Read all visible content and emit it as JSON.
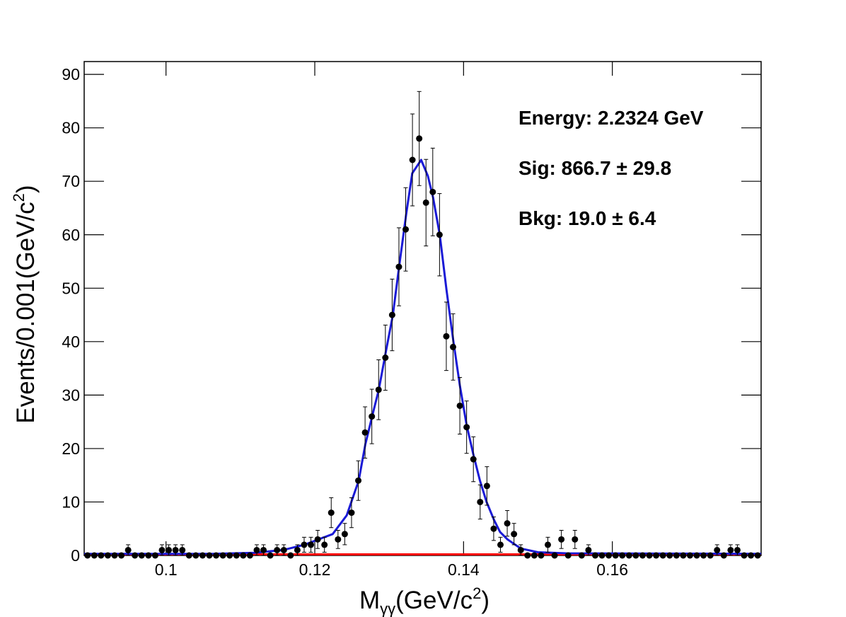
{
  "chart_data": {
    "type": "errorbar",
    "x_label": {
      "main": "M",
      "sub": "γγ",
      "rest": "(GeV/c",
      "sup": "2",
      "end": ")"
    },
    "y_label": {
      "main": "Events/0.001(GeV/c",
      "sup": "2",
      "end": ")"
    },
    "annotations": [
      "Energy: 2.2324 GeV",
      "Sig: 866.7  ± 29.8",
      "Bkg: 19.0  ± 6.4"
    ],
    "xlim": [
      0.089,
      0.18
    ],
    "ylim": [
      0,
      92.4
    ],
    "xticks": [
      0.1,
      0.12,
      0.14,
      0.16
    ],
    "yticks": [
      0,
      10,
      20,
      30,
      40,
      50,
      60,
      70,
      80,
      90
    ],
    "series": [
      {
        "type": "errorbar",
        "color": "#000000",
        "x": [
          0.08945,
          0.09036,
          0.09127,
          0.09218,
          0.09309,
          0.094,
          0.09491,
          0.09582,
          0.09673,
          0.09764,
          0.09855,
          0.09946,
          0.10037,
          0.10128,
          0.10219,
          0.1031,
          0.10401,
          0.10492,
          0.10583,
          0.10674,
          0.10765,
          0.10856,
          0.10947,
          0.11038,
          0.11129,
          0.1122,
          0.11311,
          0.11402,
          0.11493,
          0.11584,
          0.11675,
          0.11766,
          0.11857,
          0.11948,
          0.12039,
          0.1213,
          0.12221,
          0.12312,
          0.12403,
          0.12494,
          0.12585,
          0.12676,
          0.12767,
          0.12858,
          0.12949,
          0.1304,
          0.13131,
          0.13222,
          0.13313,
          0.13404,
          0.13495,
          0.13586,
          0.13677,
          0.13768,
          0.13859,
          0.1395,
          0.14041,
          0.14132,
          0.14223,
          0.14314,
          0.14405,
          0.14496,
          0.14587,
          0.14678,
          0.14769,
          0.1486,
          0.14951,
          0.15042,
          0.15133,
          0.15224,
          0.15315,
          0.15406,
          0.15497,
          0.15588,
          0.15679,
          0.1577,
          0.15861,
          0.15952,
          0.16043,
          0.16134,
          0.16225,
          0.16316,
          0.16407,
          0.16498,
          0.16589,
          0.1668,
          0.16771,
          0.16862,
          0.16953,
          0.17044,
          0.17135,
          0.17226,
          0.17317,
          0.17408,
          0.17499,
          0.1759,
          0.17681,
          0.17772,
          0.17863,
          0.17954
        ],
        "values": [
          0,
          0,
          0,
          0,
          0,
          0,
          1,
          0,
          0,
          0,
          0,
          1,
          1,
          1,
          1,
          0,
          0,
          0,
          0,
          0,
          0,
          0,
          0,
          0,
          0,
          1,
          1,
          0,
          1,
          1,
          0,
          1,
          2,
          2,
          3,
          2,
          8,
          3,
          4,
          8,
          14,
          23,
          26,
          31,
          37,
          45,
          54,
          61,
          74,
          78,
          66,
          68,
          60,
          41,
          39,
          28,
          24,
          18,
          10,
          13,
          5,
          2,
          6,
          4,
          1,
          0,
          0,
          0,
          2,
          0,
          3,
          0,
          3,
          0,
          1,
          0,
          0,
          0,
          0,
          0,
          0,
          0,
          0,
          0,
          0,
          0,
          0,
          0,
          0,
          0,
          0,
          0,
          0,
          1,
          0,
          1,
          1,
          0,
          0,
          0
        ],
        "errors": [
          0,
          0,
          0,
          0,
          0,
          0,
          1,
          0,
          0,
          0,
          0,
          1,
          1,
          1,
          1,
          0,
          0,
          0,
          0,
          0,
          0,
          0,
          0,
          0,
          0,
          1,
          1,
          0,
          1,
          1,
          0,
          1,
          1.4,
          1.4,
          1.7,
          1.4,
          2.8,
          1.7,
          2,
          2.8,
          3.7,
          4.8,
          5.1,
          5.6,
          6.1,
          6.7,
          7.3,
          7.8,
          8.6,
          8.8,
          8.1,
          8.2,
          7.7,
          6.4,
          6.2,
          5.3,
          4.9,
          4.2,
          3.2,
          3.6,
          2.2,
          1.4,
          2.4,
          2,
          1,
          0,
          0,
          0,
          1.4,
          0,
          1.7,
          0,
          1.7,
          0,
          1,
          0,
          0,
          0,
          0,
          0,
          0,
          0,
          0,
          0,
          0,
          0,
          0,
          0,
          0,
          0,
          0,
          0,
          0,
          1,
          0,
          1,
          1,
          0,
          0,
          0
        ]
      },
      {
        "type": "line",
        "color": "#1a1ad6",
        "x": [
          0.089,
          0.1062,
          0.1119,
          0.1157,
          0.1186,
          0.1205,
          0.1224,
          0.1243,
          0.1259,
          0.1268,
          0.1278,
          0.1286,
          0.1295,
          0.1305,
          0.1313,
          0.1323,
          0.1331,
          0.1343,
          0.1352,
          0.1359,
          0.1368,
          0.1377,
          0.1386,
          0.1395,
          0.1404,
          0.1413,
          0.1422,
          0.1431,
          0.1441,
          0.1449,
          0.1459,
          0.1477,
          0.15,
          0.1538,
          0.18
        ],
        "values": [
          0.3,
          0.3,
          0.5,
          1,
          2,
          3,
          4,
          7.5,
          14,
          20.8,
          26.5,
          31,
          37.7,
          45,
          53.6,
          64,
          71.5,
          74,
          71,
          67,
          60,
          49.7,
          40.4,
          31.8,
          24.5,
          19,
          14,
          10,
          6.6,
          4.4,
          3,
          1.3,
          0.6,
          0.4,
          0.3
        ]
      },
      {
        "type": "line",
        "color": "#ff0000",
        "x": [
          0.089,
          0.18
        ],
        "values": [
          0.2,
          0.2
        ]
      }
    ]
  }
}
